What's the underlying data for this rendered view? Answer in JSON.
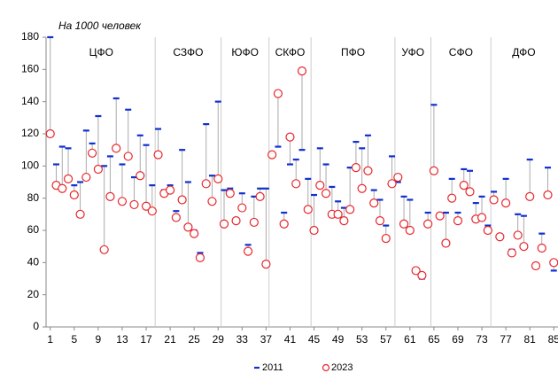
{
  "chart_data": {
    "type": "dot-pair",
    "y_axis_label": "На 1000 человек",
    "x": [
      1,
      2,
      3,
      4,
      5,
      6,
      7,
      8,
      9,
      10,
      11,
      12,
      13,
      14,
      15,
      16,
      17,
      18,
      19,
      20,
      21,
      22,
      23,
      24,
      25,
      26,
      27,
      28,
      29,
      30,
      31,
      32,
      33,
      34,
      35,
      36,
      37,
      38,
      39,
      40,
      41,
      42,
      43,
      44,
      45,
      46,
      47,
      48,
      49,
      50,
      51,
      52,
      53,
      54,
      55,
      56,
      57,
      58,
      59,
      60,
      61,
      62,
      63,
      64,
      65,
      66,
      67,
      68,
      69,
      70,
      71,
      72,
      73,
      74,
      75,
      76,
      77,
      78,
      79,
      80,
      81,
      82,
      83,
      84,
      85
    ],
    "series": [
      {
        "name": "2011",
        "color": "#1030d0",
        "marker": "dash",
        "values": [
          180,
          101,
          112,
          111,
          88,
          90,
          122,
          114,
          131,
          100,
          106,
          142,
          101,
          135,
          93,
          119,
          113,
          88,
          123,
          85,
          88,
          72,
          110,
          90,
          60,
          46,
          126,
          94,
          140,
          85,
          86,
          65,
          83,
          51,
          81,
          86,
          86,
          107,
          112,
          71,
          101,
          104,
          110,
          92,
          82,
          111,
          101,
          87,
          78,
          74,
          99,
          115,
          111,
          119,
          85,
          79,
          63,
          106,
          90,
          81,
          79,
          34,
          30,
          71,
          138,
          69,
          71,
          92,
          71,
          98,
          97,
          77,
          81,
          63,
          84,
          57,
          92,
          48,
          70,
          69,
          104,
          38,
          58,
          99,
          35
        ]
      },
      {
        "name": "2023",
        "color": "#e8262b",
        "marker": "circle",
        "values": [
          120,
          88,
          86,
          92,
          82,
          70,
          93,
          108,
          98,
          48,
          81,
          111,
          78,
          106,
          76,
          94,
          75,
          72,
          107,
          83,
          85,
          68,
          79,
          62,
          58,
          43,
          89,
          78,
          92,
          64,
          83,
          66,
          74,
          47,
          65,
          81,
          39,
          107,
          145,
          64,
          118,
          89,
          159,
          73,
          60,
          88,
          83,
          70,
          70,
          66,
          73,
          99,
          86,
          97,
          77,
          66,
          55,
          89,
          93,
          64,
          60,
          35,
          32,
          64,
          97,
          69,
          52,
          80,
          66,
          88,
          84,
          67,
          68,
          60,
          79,
          56,
          77,
          46,
          57,
          50,
          81,
          38,
          49,
          82,
          40
        ]
      }
    ],
    "regions": [
      {
        "name": "ЦФО",
        "from": 1,
        "to": 18
      },
      {
        "name": "СЗФО",
        "from": 19,
        "to": 29
      },
      {
        "name": "ЮФО",
        "from": 30,
        "to": 37
      },
      {
        "name": "СКФО",
        "from": 38,
        "to": 44
      },
      {
        "name": "ПФО",
        "from": 45,
        "to": 58
      },
      {
        "name": "УФО",
        "from": 59,
        "to": 64
      },
      {
        "name": "СФО",
        "from": 65,
        "to": 74
      },
      {
        "name": "ДФО",
        "from": 75,
        "to": 85
      }
    ],
    "xlim": [
      0.3,
      85.7
    ],
    "xticks": [
      1,
      5,
      9,
      13,
      17,
      21,
      25,
      29,
      33,
      37,
      41,
      45,
      49,
      53,
      57,
      61,
      65,
      69,
      73,
      77,
      81,
      85
    ],
    "ylim": [
      0,
      180
    ],
    "yticks": [
      0,
      20,
      40,
      60,
      80,
      100,
      120,
      140,
      160,
      180
    ],
    "grid": false,
    "legend": "bottom"
  }
}
